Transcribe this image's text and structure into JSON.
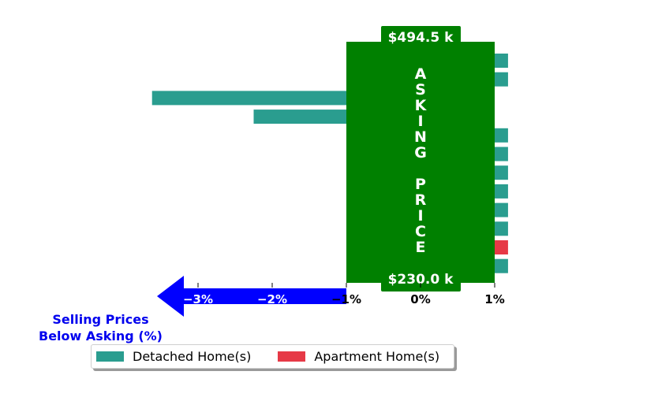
{
  "chart_data": {
    "type": "bar",
    "orientation": "horizontal",
    "x_ticks": [
      "−3%",
      "−2%",
      "−1%",
      "0%",
      "1%"
    ],
    "tick_values": [
      -3,
      -2,
      -1,
      0,
      1
    ],
    "xlim": [
      -3.7,
      1.4
    ],
    "xlabel": "Selling Prices\nBelow Asking (%)",
    "asking_band": {
      "label": "ASKING PRICE",
      "top_value": "$494.5 k",
      "bottom_value": "$230.0 k",
      "range": [
        -1,
        1
      ],
      "color": "#008000"
    },
    "series": [
      {
        "name": "Detached Home(s)",
        "color": "#2a9d8f",
        "values": [
          1.18,
          1.18,
          -3.62,
          -2.25,
          1.18,
          1.18,
          1.18,
          1.18,
          1.18,
          1.18,
          null,
          1.18
        ]
      },
      {
        "name": "Apartment Home(s)",
        "color": "#e63946",
        "values": [
          null,
          null,
          null,
          null,
          null,
          null,
          null,
          null,
          null,
          null,
          1.18,
          null
        ]
      }
    ],
    "arrow_color": "#0000ff",
    "grid": false,
    "legend_position": "bottom"
  }
}
